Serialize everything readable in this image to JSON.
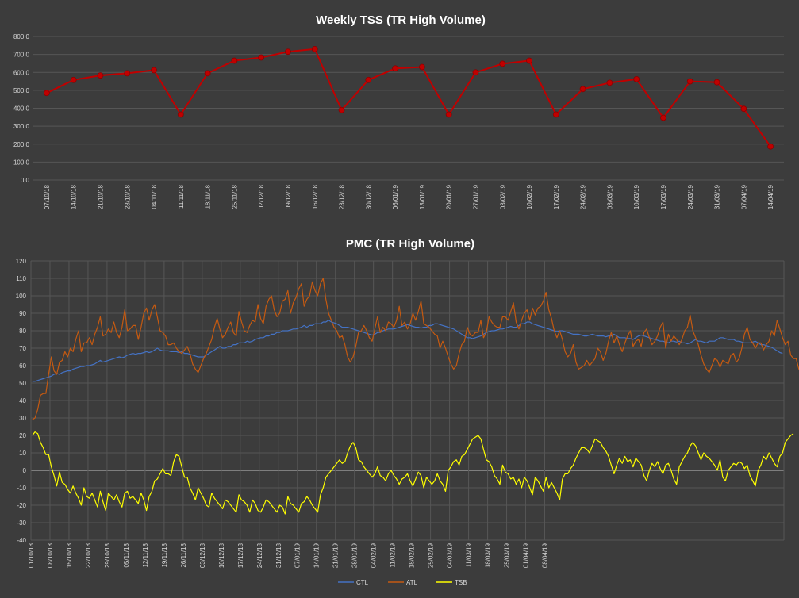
{
  "theme": {
    "background": "#3c3c3c",
    "grid": "#565656",
    "text": "#ffffff",
    "axis_text": "#d9d9d9",
    "zero_line": "#bfbfbf"
  },
  "chart_data": [
    {
      "type": "line",
      "title": "Weekly TSS (TR High Volume)",
      "xlabel": "",
      "ylabel": "",
      "ylim": [
        0,
        800
      ],
      "y_ticks": [
        "0.0",
        "100.0",
        "200.0",
        "300.0",
        "400.0",
        "500.0",
        "600.0",
        "700.0",
        "800.0"
      ],
      "grid": "horizontal",
      "markers": true,
      "line_color": "#c00000",
      "marker_color": "#c00000",
      "categories": [
        "07/10/18",
        "14/10/18",
        "21/10/18",
        "28/10/18",
        "04/11/18",
        "11/11/18",
        "18/11/18",
        "25/11/18",
        "02/12/18",
        "09/12/18",
        "16/12/18",
        "23/12/18",
        "30/12/18",
        "06/01/19",
        "13/01/19",
        "20/01/19",
        "27/01/19",
        "03/02/19",
        "10/02/19",
        "17/02/19",
        "24/02/19",
        "03/03/19",
        "10/03/19",
        "17/03/19",
        "24/03/19",
        "31/03/19",
        "07/04/19",
        "14/04/19"
      ],
      "values": [
        485,
        558,
        583,
        595,
        612,
        365,
        595,
        665,
        683,
        715,
        730,
        390,
        558,
        622,
        630,
        365,
        600,
        648,
        665,
        365,
        507,
        542,
        562,
        347,
        550,
        545,
        397,
        187
      ]
    },
    {
      "type": "line",
      "title": "PMC (TR High Volume)",
      "xlabel": "",
      "ylabel": "",
      "ylim": [
        -40,
        120
      ],
      "y_ticks": [
        "-40",
        "-30",
        "-20",
        "-10",
        "0",
        "10",
        "20",
        "30",
        "40",
        "50",
        "60",
        "70",
        "80",
        "90",
        "100",
        "110",
        "120"
      ],
      "grid": "both",
      "legend": "bottom",
      "x_start": "01/10/18",
      "x_ticks": [
        "01/10/18",
        "08/10/18",
        "15/10/18",
        "22/10/18",
        "29/10/18",
        "05/11/18",
        "12/11/18",
        "19/11/18",
        "26/11/18",
        "03/12/18",
        "10/12/18",
        "17/12/18",
        "24/12/18",
        "31/12/18",
        "07/01/19",
        "14/01/19",
        "21/01/19",
        "28/01/19",
        "04/02/19",
        "11/02/19",
        "18/02/19",
        "25/02/19",
        "04/03/19",
        "11/03/19",
        "18/03/19",
        "25/03/19",
        "01/04/19",
        "08/04/19"
      ],
      "series": [
        {
          "name": "CTL",
          "color": "#4472c4",
          "values": [
            51,
            51,
            51.5,
            52,
            52.5,
            53,
            53.5,
            54,
            55,
            55.5,
            55,
            56,
            56.5,
            57,
            57,
            58,
            58.5,
            59,
            59.5,
            59.5,
            60,
            60,
            60.5,
            61,
            62,
            63,
            62,
            62.5,
            63,
            63.5,
            64,
            64.5,
            65,
            64.5,
            65,
            66,
            66.5,
            67,
            66.5,
            67,
            67,
            67.5,
            68,
            67.5,
            68,
            69,
            70,
            69,
            68.5,
            68.5,
            68.5,
            68,
            68,
            68,
            67.5,
            68,
            67,
            67,
            66.5,
            66,
            65.5,
            65,
            65,
            65,
            66,
            67,
            68,
            69,
            70,
            71,
            70,
            70,
            71,
            71,
            72,
            72,
            73,
            73,
            73,
            74,
            73.5,
            74,
            75,
            75.5,
            76,
            76,
            77,
            77,
            78,
            78,
            79,
            79,
            80,
            80,
            80,
            80.5,
            81,
            81,
            81.5,
            82,
            83,
            82,
            83,
            83,
            84,
            84,
            84,
            85,
            85,
            86,
            85,
            84.5,
            84,
            83,
            82,
            82,
            82,
            81.5,
            81,
            80.5,
            80,
            79.5,
            79,
            78.5,
            78,
            77.5,
            78,
            79,
            79,
            80,
            80.5,
            81,
            81,
            81,
            81.5,
            82,
            82.5,
            83,
            83.5,
            83,
            82.5,
            82,
            82,
            81.5,
            82,
            82,
            83,
            83,
            84,
            84,
            83.5,
            83,
            82.5,
            82,
            81.5,
            81,
            80,
            79,
            78,
            77,
            76,
            76,
            75.5,
            76,
            76.5,
            77,
            78,
            79,
            79.5,
            80,
            80,
            80.5,
            81,
            81,
            81.5,
            82,
            82.5,
            82,
            82,
            83,
            84,
            84,
            85,
            85,
            84,
            83.5,
            83,
            82.5,
            82,
            81.5,
            81,
            80.5,
            80,
            79.5,
            80,
            80,
            79.5,
            79,
            78.5,
            78,
            78,
            78,
            77.5,
            77,
            77,
            77.5,
            78,
            77.5,
            77,
            77,
            77,
            76.5,
            77,
            77,
            78,
            77,
            76,
            76,
            76,
            75.5,
            75.5,
            75,
            76,
            77,
            77.5,
            77,
            76.5,
            76,
            75.5,
            75,
            74.5,
            74,
            74,
            73.5,
            73,
            74,
            74,
            73.5,
            74,
            73,
            73,
            72.5,
            73,
            74,
            75,
            74,
            74,
            73.5,
            73,
            74,
            74,
            74,
            75,
            76,
            76,
            75.5,
            75,
            75,
            75,
            74,
            74,
            73.5,
            73,
            73,
            73,
            73.5,
            74,
            73,
            72,
            72,
            71.5,
            71,
            70.5,
            69.5,
            68.5,
            67.5,
            67
          ]
        },
        {
          "name": "ATL",
          "color": "#c55a11",
          "values": [
            29,
            30,
            35,
            43,
            44,
            44,
            55,
            65,
            57,
            55,
            62,
            63,
            68,
            65,
            70,
            68,
            75,
            80,
            68,
            73,
            73,
            76,
            72,
            78,
            82,
            88,
            77,
            78,
            81,
            79,
            85,
            79,
            76,
            82,
            92,
            80,
            81,
            83,
            83,
            75,
            82,
            90,
            93,
            86,
            92,
            95,
            88,
            80,
            79,
            77,
            72,
            72,
            73,
            70,
            68,
            67,
            69,
            71,
            67,
            61,
            58,
            56,
            60,
            64,
            67,
            71,
            75,
            82,
            87,
            81,
            76,
            78,
            82,
            85,
            79,
            77,
            91,
            85,
            80,
            79,
            83,
            86,
            85,
            95,
            87,
            84,
            94,
            98,
            100,
            92,
            88,
            90,
            97,
            98,
            103,
            90,
            96,
            99,
            104,
            107,
            94,
            98,
            100,
            108,
            103,
            100,
            107,
            110,
            98,
            90,
            86,
            82,
            80,
            76,
            77,
            72,
            65,
            62,
            65,
            71,
            79,
            80,
            83,
            80,
            76,
            74,
            81,
            88,
            79,
            82,
            80,
            85,
            84,
            82,
            86,
            94,
            83,
            85,
            81,
            84,
            90,
            86,
            91,
            97,
            84,
            83,
            82,
            80,
            78,
            77,
            70,
            74,
            70,
            65,
            61,
            58,
            60,
            67,
            72,
            74,
            82,
            78,
            77,
            79,
            79,
            86,
            76,
            79,
            88,
            85,
            83,
            82,
            82,
            88,
            88,
            86,
            91,
            96,
            85,
            81,
            86,
            90,
            92,
            86,
            93,
            89,
            93,
            94,
            97,
            102,
            92,
            87,
            80,
            76,
            80,
            75,
            68,
            65,
            67,
            72,
            62,
            58,
            59,
            60,
            63,
            60,
            62,
            64,
            70,
            68,
            63,
            67,
            74,
            79,
            73,
            77,
            72,
            68,
            73,
            77,
            80,
            71,
            74,
            75,
            71,
            79,
            81,
            76,
            72,
            74,
            77,
            82,
            85,
            70,
            78,
            74,
            77,
            75,
            72,
            75,
            80,
            82,
            89,
            80,
            76,
            72,
            66,
            61,
            58,
            56,
            60,
            64,
            63,
            59,
            63,
            62,
            61,
            66,
            67,
            62,
            64,
            70,
            78,
            82,
            75,
            73,
            70,
            73,
            73,
            69,
            72,
            74,
            80,
            77,
            86,
            81,
            76,
            72,
            74,
            66,
            64,
            64,
            58,
            60,
            55,
            54,
            56,
            50,
            48,
            45,
            40
          ]
        },
        {
          "name": "TSB",
          "color": "#ffff00",
          "values": [
            20,
            22,
            21,
            16,
            13,
            9,
            9,
            2,
            -3,
            -9,
            -1,
            -7,
            -8,
            -11,
            -13,
            -9,
            -13,
            -16,
            -20,
            -10,
            -15,
            -16,
            -13,
            -17,
            -21,
            -12,
            -18,
            -23,
            -13,
            -15,
            -17,
            -14,
            -18,
            -21,
            -13,
            -12,
            -16,
            -15,
            -17,
            -19,
            -13,
            -17,
            -23,
            -15,
            -12,
            -6,
            -5,
            -2,
            1,
            -2,
            -2,
            -3,
            5,
            9,
            8,
            2,
            -4,
            -4,
            -10,
            -13,
            -17,
            -10,
            -13,
            -16,
            -20,
            -21,
            -13,
            -16,
            -18,
            -20,
            -22,
            -17,
            -18,
            -20,
            -22,
            -24,
            -14,
            -17,
            -18,
            -20,
            -24,
            -17,
            -19,
            -23,
            -24,
            -21,
            -17,
            -18,
            -20,
            -22,
            -24,
            -20,
            -21,
            -25,
            -15,
            -19,
            -20,
            -22,
            -24,
            -19,
            -18,
            -15,
            -17,
            -20,
            -22,
            -24,
            -14,
            -10,
            -4,
            -2,
            0,
            2,
            4,
            6,
            4,
            5,
            10,
            14,
            16,
            13,
            6,
            5,
            2,
            0,
            -2,
            -4,
            -2,
            2,
            -3,
            -4,
            -6,
            -2,
            0,
            -3,
            -5,
            -8,
            -5,
            -4,
            -2,
            -6,
            -9,
            -5,
            -1,
            -3,
            -10,
            -4,
            -6,
            -8,
            -6,
            -2,
            -6,
            -8,
            -12,
            0,
            2,
            5,
            6,
            3,
            8,
            9,
            12,
            15,
            18,
            19,
            20,
            18,
            12,
            6,
            5,
            2,
            -3,
            -5,
            -8,
            3,
            -1,
            -2,
            -5,
            -4,
            -8,
            -5,
            -10,
            -4,
            -6,
            -10,
            -14,
            -4,
            -6,
            -9,
            -12,
            -4,
            -10,
            -7,
            -10,
            -13,
            -17,
            -5,
            -2,
            -2,
            1,
            3,
            7,
            10,
            13,
            13,
            12,
            10,
            14,
            18,
            17,
            16,
            13,
            11,
            8,
            3,
            -2,
            3,
            7,
            4,
            8,
            5,
            6,
            2,
            7,
            5,
            3,
            -3,
            -6,
            0,
            4,
            2,
            5,
            1,
            -2,
            3,
            4,
            0,
            -5,
            -8,
            2,
            5,
            8,
            10,
            14,
            16,
            14,
            10,
            6,
            10,
            8,
            7,
            5,
            3,
            0,
            6,
            -4,
            -6,
            0,
            2,
            4,
            3,
            5,
            4,
            1,
            3,
            -3,
            -6,
            -9,
            0,
            3,
            8,
            6,
            10,
            7,
            4,
            2,
            8,
            10,
            16,
            18,
            20,
            21
          ]
        }
      ]
    }
  ]
}
